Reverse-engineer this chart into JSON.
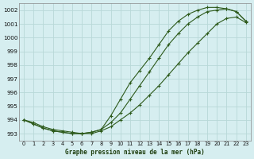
{
  "title": "Graphe pression niveau de la mer (hPa)",
  "background_color": "#d6eef0",
  "grid_color": "#b8d8d8",
  "line_color": "#2d5a1b",
  "xlim": [
    -0.5,
    23.5
  ],
  "ylim": [
    992.5,
    1002.5
  ],
  "xticks": [
    0,
    1,
    2,
    3,
    4,
    5,
    6,
    7,
    8,
    9,
    10,
    11,
    12,
    13,
    14,
    15,
    16,
    17,
    18,
    19,
    20,
    21,
    22,
    23
  ],
  "yticks": [
    993,
    994,
    995,
    996,
    997,
    998,
    999,
    1000,
    1001,
    1002
  ],
  "series1_x": [
    0,
    1,
    2,
    3,
    4,
    5,
    6,
    7,
    8,
    9,
    10,
    11,
    12,
    13,
    14,
    15,
    16,
    17,
    18,
    19,
    20,
    21,
    22,
    23
  ],
  "series1_y": [
    994.0,
    993.7,
    993.4,
    993.2,
    993.1,
    993.0,
    993.0,
    993.1,
    993.3,
    993.8,
    994.5,
    995.5,
    996.5,
    997.5,
    998.5,
    999.5,
    1000.3,
    1001.0,
    1001.5,
    1001.9,
    1002.0,
    1002.1,
    1001.9,
    1001.2
  ],
  "series2_x": [
    0,
    1,
    2,
    3,
    4,
    5,
    6,
    7,
    8,
    9,
    10,
    11,
    12,
    13,
    14,
    15,
    16,
    17,
    18,
    19,
    20,
    21,
    22,
    23
  ],
  "series2_y": [
    994.0,
    993.7,
    993.4,
    993.2,
    993.1,
    993.0,
    993.0,
    993.1,
    993.3,
    994.3,
    995.5,
    996.7,
    997.6,
    998.5,
    999.5,
    1000.5,
    1001.2,
    1001.7,
    1002.0,
    1002.2,
    1002.2,
    1002.1,
    1001.9,
    1001.2
  ],
  "series3_x": [
    0,
    1,
    2,
    3,
    4,
    5,
    6,
    7,
    8,
    9,
    10,
    11,
    12,
    13,
    14,
    15,
    16,
    17,
    18,
    19,
    20,
    21,
    22,
    23
  ],
  "series3_y": [
    994.0,
    993.8,
    993.5,
    993.3,
    993.2,
    993.1,
    993.0,
    993.0,
    993.2,
    993.5,
    994.0,
    994.5,
    995.1,
    995.8,
    996.5,
    997.3,
    998.1,
    998.9,
    999.6,
    1000.3,
    1001.0,
    1001.4,
    1001.5,
    1001.1
  ]
}
